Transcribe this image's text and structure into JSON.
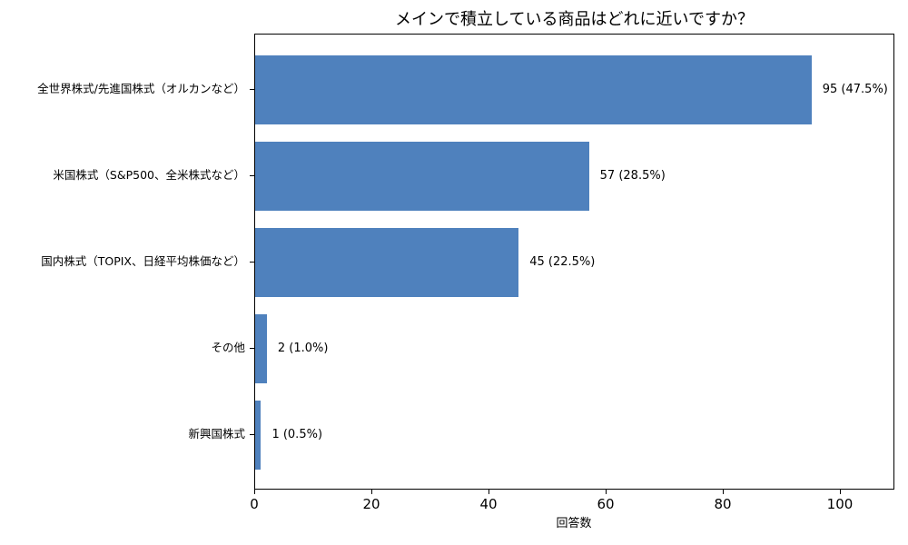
{
  "chart_data": {
    "type": "bar",
    "orientation": "horizontal",
    "title": "メインで積立している商品はどれに近いですか？",
    "xlabel": "回答数",
    "ylabel": "",
    "xlim": [
      0,
      109.3
    ],
    "xticks": [
      0,
      20,
      40,
      60,
      80,
      100
    ],
    "grid": false,
    "legend": null,
    "bar_color": "#4f81bd",
    "categories": [
      "全世界株式/先進国株式（オルカンなど）",
      "米国株式（S&P500、全米株式など）",
      "国内株式（TOPIX、日経平均株価など）",
      "その他",
      "新興国株式"
    ],
    "values": [
      95,
      57,
      45,
      2,
      1
    ],
    "percentages": [
      47.5,
      28.5,
      22.5,
      1.0,
      0.5
    ],
    "data_labels": [
      "95 (47.5%)",
      "57 (28.5%)",
      "45 (22.5%)",
      "2 (1.0%)",
      "1 (0.5%)"
    ]
  },
  "ui": {
    "xtick_labels": [
      "0",
      "20",
      "40",
      "60",
      "80",
      "100"
    ]
  }
}
